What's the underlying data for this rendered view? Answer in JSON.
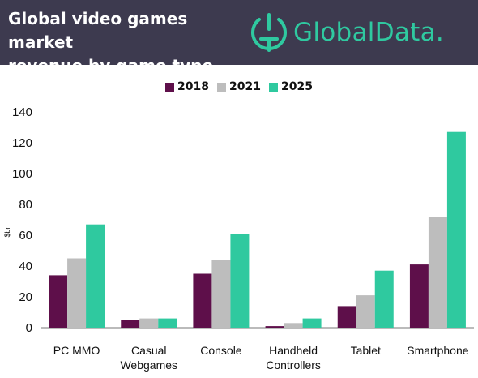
{
  "header": {
    "title_line1": "Global video games market",
    "title_line2": "revenue by game type",
    "brand": "GlobalData."
  },
  "colors": {
    "header_bg": "#3d3a4f",
    "brand": "#2fc9a0"
  },
  "chart_data": {
    "type": "bar",
    "ylabel": "$bn",
    "ylim": [
      0,
      140
    ],
    "yticks": [
      0,
      20,
      40,
      60,
      80,
      100,
      120,
      140
    ],
    "grid": false,
    "legend_position": "top-center",
    "categories": [
      [
        "PC MMO"
      ],
      [
        "Casual",
        "Webgames"
      ],
      [
        "Console"
      ],
      [
        "Handheld",
        "Controllers"
      ],
      [
        "Tablet"
      ],
      [
        "Smartphone"
      ]
    ],
    "series": [
      {
        "name": "2018",
        "color": "#5e0f4a",
        "values": [
          34,
          5,
          35,
          1,
          14,
          41
        ]
      },
      {
        "name": "2021",
        "color": "#bdbdbd",
        "values": [
          45,
          6,
          44,
          3,
          21,
          72
        ]
      },
      {
        "name": "2025",
        "color": "#2fc99f",
        "values": [
          67,
          6,
          61,
          6,
          37,
          127
        ]
      }
    ]
  }
}
